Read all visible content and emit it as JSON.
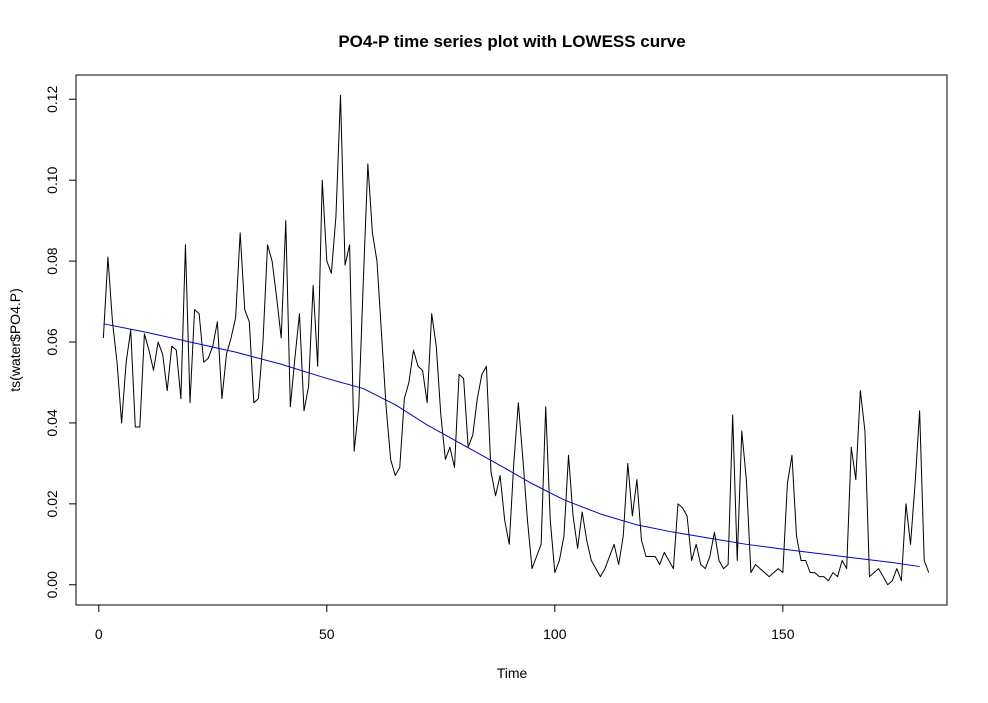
{
  "chart_data": {
    "type": "line",
    "title": "PO4-P time series plot with LOWESS curve",
    "xlabel": "Time",
    "ylabel": "ts(water$PO4.P)",
    "xlim": [
      -5,
      186
    ],
    "ylim": [
      -0.005,
      0.126
    ],
    "x_ticks": [
      0,
      50,
      100,
      150
    ],
    "y_ticks": [
      0.0,
      0.02,
      0.04,
      0.06,
      0.08,
      0.1,
      0.12
    ],
    "x_tick_labels": [
      "0",
      "50",
      "100",
      "150"
    ],
    "y_tick_labels": [
      "0.00",
      "0.02",
      "0.04",
      "0.06",
      "0.08",
      "0.10",
      "0.12"
    ],
    "grid": false,
    "legend": "none",
    "series": [
      {
        "color": "#000000",
        "x_start": 1,
        "values": [
          0.061,
          0.081,
          0.065,
          0.055,
          0.04,
          0.055,
          0.063,
          0.039,
          0.039,
          0.062,
          0.058,
          0.053,
          0.06,
          0.057,
          0.048,
          0.059,
          0.058,
          0.046,
          0.084,
          0.045,
          0.068,
          0.067,
          0.055,
          0.056,
          0.059,
          0.065,
          0.046,
          0.057,
          0.061,
          0.066,
          0.087,
          0.068,
          0.065,
          0.045,
          0.046,
          0.06,
          0.084,
          0.08,
          0.071,
          0.061,
          0.09,
          0.044,
          0.056,
          0.067,
          0.043,
          0.049,
          0.074,
          0.054,
          0.1,
          0.08,
          0.077,
          0.091,
          0.121,
          0.079,
          0.084,
          0.033,
          0.044,
          0.075,
          0.104,
          0.087,
          0.08,
          0.062,
          0.044,
          0.031,
          0.027,
          0.029,
          0.046,
          0.05,
          0.058,
          0.054,
          0.053,
          0.045,
          0.067,
          0.059,
          0.042,
          0.031,
          0.034,
          0.029,
          0.052,
          0.051,
          0.034,
          0.037,
          0.046,
          0.052,
          0.054,
          0.028,
          0.022,
          0.027,
          0.016,
          0.01,
          0.03,
          0.045,
          0.031,
          0.016,
          0.004,
          0.007,
          0.01,
          0.044,
          0.016,
          0.003,
          0.006,
          0.012,
          0.032,
          0.017,
          0.009,
          0.018,
          0.011,
          0.006,
          0.004,
          0.002,
          0.004,
          0.007,
          0.01,
          0.005,
          0.012,
          0.03,
          0.017,
          0.026,
          0.011,
          0.007,
          0.007,
          0.007,
          0.005,
          0.008,
          0.006,
          0.004,
          0.02,
          0.019,
          0.017,
          0.006,
          0.01,
          0.005,
          0.004,
          0.007,
          0.013,
          0.006,
          0.004,
          0.005,
          0.042,
          0.006,
          0.038,
          0.026,
          0.003,
          0.005,
          0.004,
          0.003,
          0.002,
          0.003,
          0.004,
          0.003,
          0.025,
          0.032,
          0.012,
          0.006,
          0.006,
          0.003,
          0.003,
          0.002,
          0.002,
          0.001,
          0.003,
          0.002,
          0.006,
          0.004,
          0.034,
          0.026,
          0.048,
          0.038,
          0.002,
          0.003,
          0.004,
          0.002,
          0.0,
          0.001,
          0.004,
          0.001,
          0.02,
          0.01,
          0.025,
          0.043,
          0.006,
          0.003
        ]
      },
      {
        "color": "#0000cc",
        "x": [
          1,
          10,
          20,
          30,
          40,
          50,
          58,
          65,
          72,
          80,
          88,
          95,
          102,
          110,
          118,
          126,
          134,
          142,
          150,
          158,
          166,
          174,
          180
        ],
        "values": [
          0.0645,
          0.0625,
          0.06,
          0.0575,
          0.0545,
          0.051,
          0.0485,
          0.0445,
          0.0395,
          0.0345,
          0.0295,
          0.025,
          0.021,
          0.0175,
          0.0148,
          0.013,
          0.0115,
          0.01,
          0.0088,
          0.0077,
          0.0066,
          0.0055,
          0.0045
        ]
      }
    ]
  }
}
